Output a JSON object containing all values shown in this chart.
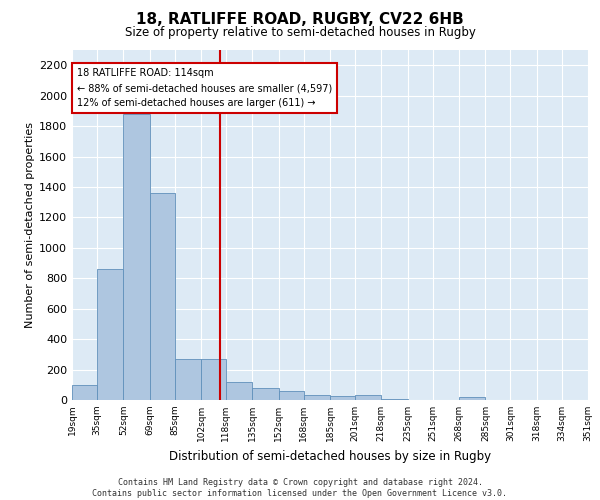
{
  "title": "18, RATLIFFE ROAD, RUGBY, CV22 6HB",
  "subtitle": "Size of property relative to semi-detached houses in Rugby",
  "xlabel": "Distribution of semi-detached houses by size in Rugby",
  "ylabel": "Number of semi-detached properties",
  "property_size": 114,
  "bin_edges": [
    19,
    35,
    52,
    69,
    85,
    102,
    118,
    135,
    152,
    168,
    185,
    201,
    218,
    235,
    251,
    268,
    285,
    301,
    318,
    334,
    351
  ],
  "bar_heights": [
    100,
    860,
    1880,
    1360,
    270,
    270,
    120,
    80,
    60,
    35,
    25,
    30,
    5,
    0,
    0,
    20,
    0,
    0,
    0,
    0
  ],
  "bar_color": "#aec6e0",
  "bar_edge_color": "#6090bb",
  "vline_color": "#cc0000",
  "vline_x": 114,
  "annotation_text": "18 RATLIFFE ROAD: 114sqm\n← 88% of semi-detached houses are smaller (4,597)\n12% of semi-detached houses are larger (611) →",
  "annotation_box_color": "#ffffff",
  "annotation_box_edge": "#cc0000",
  "ylim": [
    0,
    2300
  ],
  "yticks": [
    0,
    200,
    400,
    600,
    800,
    1000,
    1200,
    1400,
    1600,
    1800,
    2000,
    2200
  ],
  "footer": "Contains HM Land Registry data © Crown copyright and database right 2024.\nContains public sector information licensed under the Open Government Licence v3.0.",
  "plot_bg_color": "#ddeaf5",
  "fig_bg_color": "#ffffff",
  "title_fontsize": 11,
  "subtitle_fontsize": 8.5,
  "ylabel_fontsize": 8,
  "xlabel_fontsize": 8.5,
  "footer_fontsize": 6,
  "ytick_fontsize": 8,
  "xtick_fontsize": 6.5
}
